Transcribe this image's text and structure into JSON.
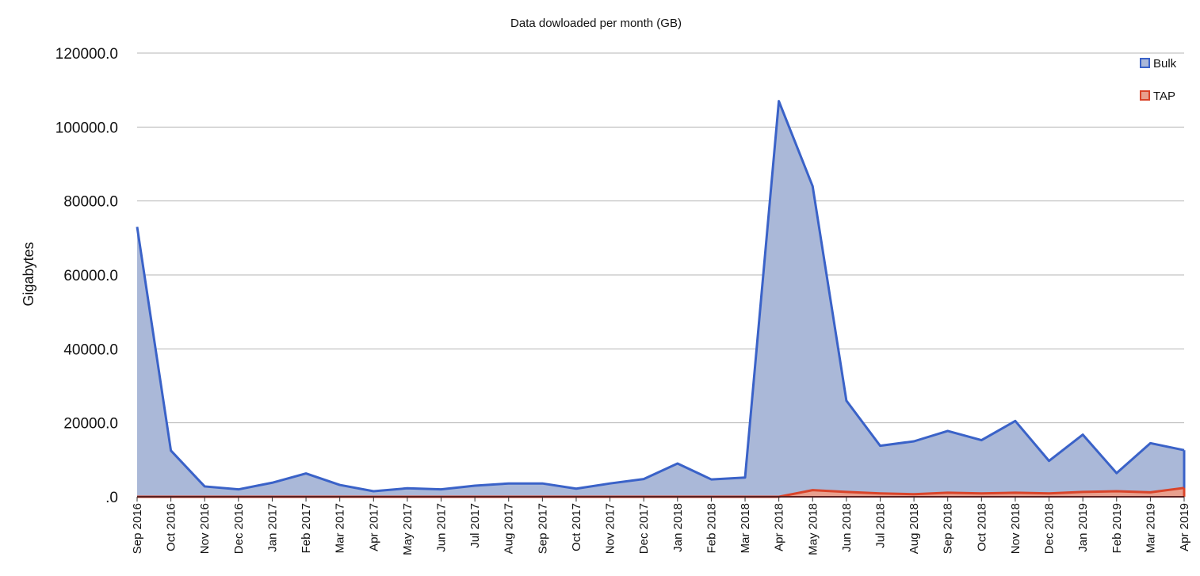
{
  "chart_data": {
    "type": "area",
    "title": "Data dowloaded per month (GB)",
    "xlabel": "",
    "ylabel": "Gigabytes",
    "ylim": [
      0,
      120000
    ],
    "yticks": [
      ".0",
      "20000.0",
      "40000.0",
      "60000.0",
      "80000.0",
      "100000.0",
      "120000.0"
    ],
    "ytick_values": [
      0,
      20000,
      40000,
      60000,
      80000,
      100000,
      120000
    ],
    "grid": true,
    "legend_position": "top-right",
    "categories": [
      "Sep 2016",
      "Oct 2016",
      "Nov 2016",
      "Dec 2016",
      "Jan 2017",
      "Feb 2017",
      "Mar 2017",
      "Apr 2017",
      "May 2017",
      "Jun 2017",
      "Jul 2017",
      "Aug 2017",
      "Sep 2017",
      "Oct 2017",
      "Nov 2017",
      "Dec 2017",
      "Jan 2018",
      "Feb 2018",
      "Mar 2018",
      "Apr 2018",
      "May 2018",
      "Jun 2018",
      "Jul 2018",
      "Aug 2018",
      "Sep 2018",
      "Oct 2018",
      "Nov 2018",
      "Dec 2018",
      "Jan 2019",
      "Feb 2019",
      "Mar 2019",
      "Apr 2019"
    ],
    "series": [
      {
        "name": "Bulk",
        "line_color": "#3a62c8",
        "fill_color": "#aab8d8",
        "values": [
          73000,
          12500,
          2800,
          2000,
          3800,
          6300,
          3200,
          1500,
          2300,
          2000,
          3000,
          3600,
          3600,
          2200,
          3600,
          4800,
          9000,
          4700,
          5200,
          107000,
          84000,
          26000,
          13800,
          15000,
          17800,
          15300,
          20500,
          9700,
          16800,
          6400,
          14500,
          12600
        ]
      },
      {
        "name": "TAP",
        "line_color": "#d9442a",
        "fill_color": "#e8a08e",
        "values": [
          0,
          0,
          0,
          0,
          0,
          0,
          0,
          0,
          0,
          0,
          0,
          0,
          0,
          0,
          0,
          0,
          0,
          0,
          0,
          0,
          1800,
          1300,
          900,
          700,
          1100,
          900,
          1100,
          900,
          1300,
          1500,
          1200,
          2400
        ]
      }
    ]
  }
}
